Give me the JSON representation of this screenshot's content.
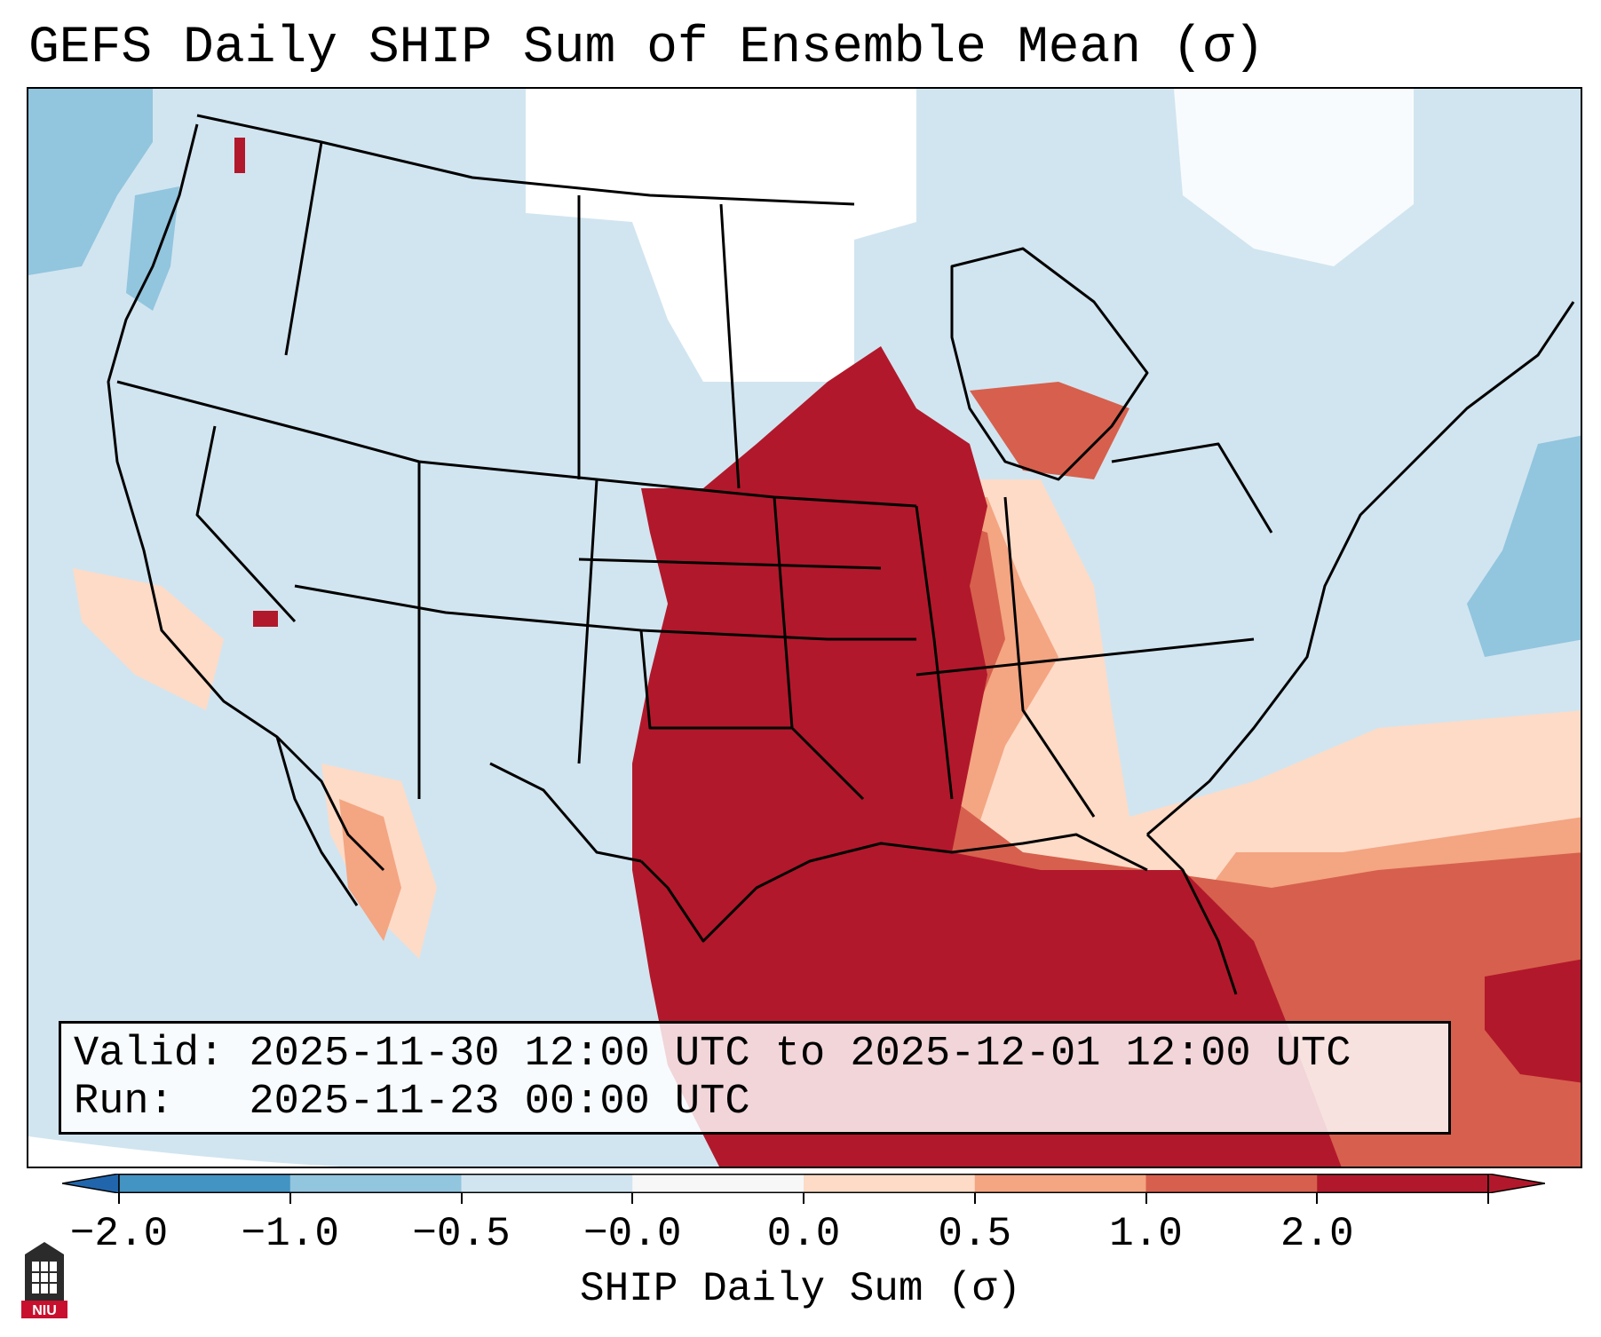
{
  "title": "GEFS Daily SHIP Sum of Ensemble Mean (σ)",
  "info": {
    "valid_label": "Valid:",
    "valid_value": "2025-11-30 12:00 UTC to 2025-12-01 12:00 UTC",
    "run_label": "Run:",
    "run_value": "2025-11-23 00:00 UTC"
  },
  "colorbar": {
    "label": "SHIP Daily Sum (σ)",
    "ticks": [
      "−2.0",
      "−1.0",
      "−0.5",
      "−0.0",
      "0.0",
      "0.5",
      "1.0",
      "2.0"
    ],
    "colors": [
      "#4393c3",
      "#92c5de",
      "#d1e5f0",
      "#f7f7f7",
      "#fddbc7",
      "#f4a582",
      "#d6604d",
      "#b2182b"
    ],
    "extend_low": "#2166ac",
    "extend_high": "#b2182b"
  },
  "logo": {
    "text": "NIU"
  }
}
